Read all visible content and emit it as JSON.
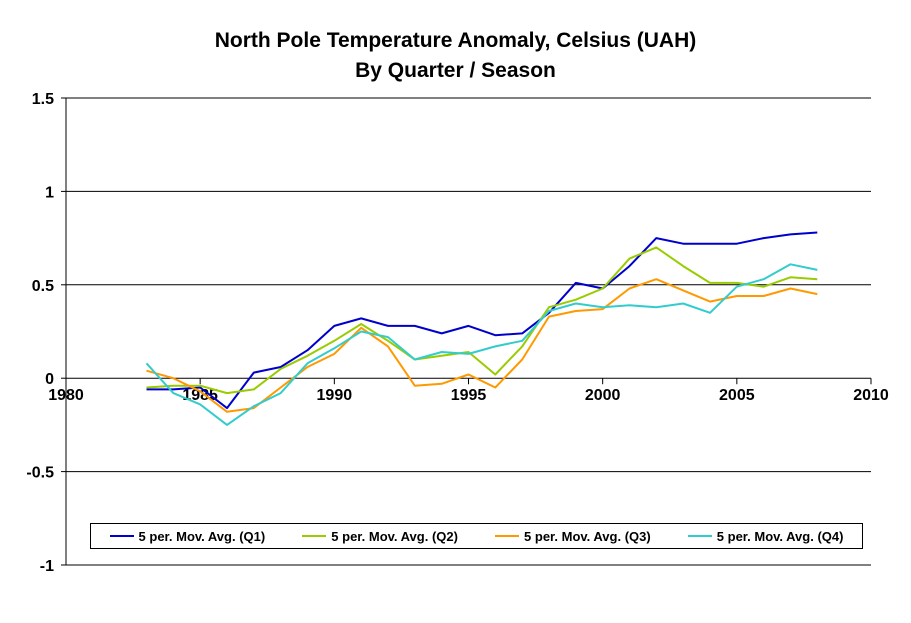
{
  "chart_data": {
    "type": "line",
    "title": "North Pole Temperature Anomaly, Celsius (UAH)",
    "subtitle": "By Quarter / Season",
    "xlabel": "",
    "ylabel": "",
    "xlim": [
      1980,
      2010
    ],
    "ylim": [
      -1,
      1.5
    ],
    "x_ticks": [
      "1980",
      "1985",
      "1990",
      "1995",
      "2000",
      "2005",
      "2010"
    ],
    "y_ticks": [
      "1.5",
      "1",
      "0.5",
      "0",
      "-0.5",
      "-1"
    ],
    "grid": "horizontal",
    "legend_position": "bottom",
    "x": [
      1983,
      1984,
      1985,
      1986,
      1987,
      1988,
      1989,
      1990,
      1991,
      1992,
      1993,
      1994,
      1995,
      1996,
      1997,
      1998,
      1999,
      2000,
      2001,
      2002,
      2003,
      2004,
      2005,
      2006,
      2007,
      2008
    ],
    "series": [
      {
        "name": "5 per. Mov. Avg. (Q1)",
        "color": "#0000cc",
        "values": [
          -0.06,
          -0.06,
          -0.05,
          -0.16,
          0.03,
          0.06,
          0.15,
          0.28,
          0.32,
          0.28,
          0.28,
          0.24,
          0.28,
          0.23,
          0.24,
          0.35,
          0.51,
          0.48,
          0.6,
          0.75,
          0.72,
          0.72,
          0.72,
          0.75,
          0.77,
          0.78
        ]
      },
      {
        "name": "5 per. Mov. Avg. (Q2)",
        "color": "#99cc00",
        "values": [
          -0.05,
          -0.04,
          -0.04,
          -0.08,
          -0.06,
          0.05,
          0.12,
          0.2,
          0.29,
          0.2,
          0.1,
          0.12,
          0.14,
          0.02,
          0.17,
          0.38,
          0.42,
          0.48,
          0.64,
          0.7,
          0.6,
          0.51,
          0.51,
          0.49,
          0.54,
          0.53
        ]
      },
      {
        "name": "5 per. Mov. Avg. (Q3)",
        "color": "#ff9900",
        "values": [
          0.04,
          0.0,
          -0.07,
          -0.18,
          -0.16,
          -0.05,
          0.06,
          0.13,
          0.27,
          0.17,
          -0.04,
          -0.03,
          0.02,
          -0.05,
          0.1,
          0.33,
          0.36,
          0.37,
          0.48,
          0.53,
          0.47,
          0.41,
          0.44,
          0.44,
          0.48,
          0.45
        ]
      },
      {
        "name": "5 per. Mov. Avg. (Q4)",
        "color": "#33cccc",
        "values": [
          0.08,
          -0.08,
          -0.14,
          -0.25,
          -0.15,
          -0.08,
          0.08,
          0.16,
          0.25,
          0.22,
          0.1,
          0.14,
          0.13,
          0.17,
          0.2,
          0.36,
          0.4,
          0.38,
          0.39,
          0.38,
          0.4,
          0.35,
          0.49,
          0.53,
          0.61,
          0.58
        ]
      }
    ]
  }
}
